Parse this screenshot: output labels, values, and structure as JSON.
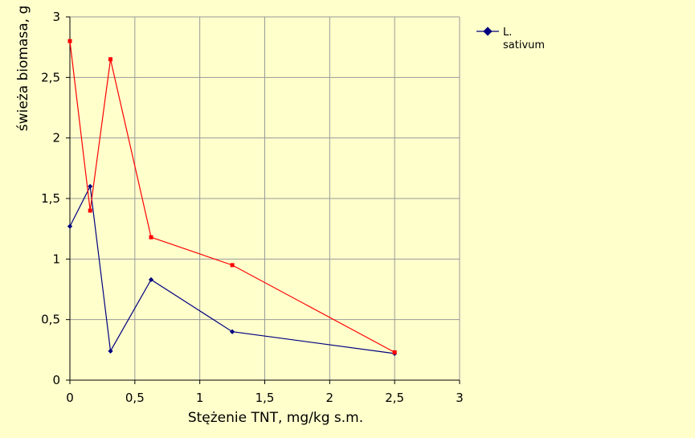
{
  "chart_data": {
    "type": "scatter",
    "title": "",
    "xlabel": "Stężenie TNT, mg/kg s.m.",
    "ylabel": "świeża biomasa, g",
    "xlim": [
      0,
      3
    ],
    "ylim": [
      0,
      3
    ],
    "x_ticks": [
      "0",
      "0,5",
      "1",
      "1,5",
      "2",
      "2,5",
      "3"
    ],
    "y_ticks": [
      "0",
      "0,5",
      "1",
      "1,5",
      "2",
      "2,5",
      "3"
    ],
    "grid": true,
    "legend_position": "right",
    "series": [
      {
        "name": "L. sativum",
        "legend_lines": [
          "L.",
          "sativum"
        ],
        "color": "#000080",
        "marker": "diamond",
        "x": [
          0,
          0.156,
          0.3125,
          0.625,
          1.25,
          2.5
        ],
        "y": [
          1.27,
          1.6,
          0.24,
          0.83,
          0.4,
          0.22
        ]
      },
      {
        "color": "#ff0000",
        "marker": "square",
        "x": [
          0,
          0.156,
          0.3125,
          0.625,
          1.25,
          2.5
        ],
        "y": [
          2.8,
          1.4,
          2.65,
          1.18,
          0.95,
          0.23
        ]
      }
    ]
  }
}
